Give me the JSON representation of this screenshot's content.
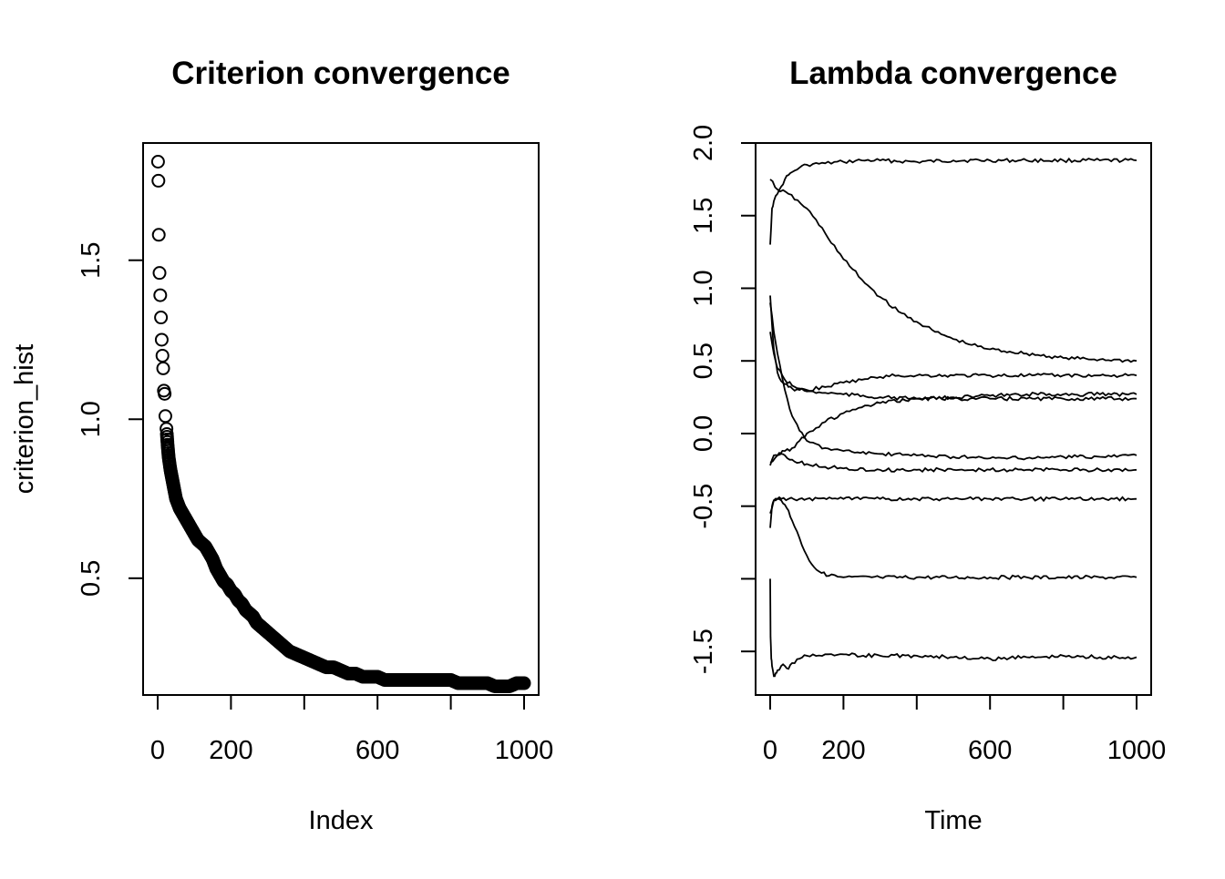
{
  "chart_data": [
    {
      "type": "scatter",
      "title": "Criterion convergence",
      "xlabel": "Index",
      "ylabel": "criterion_hist",
      "xlim": [
        0,
        1000
      ],
      "ylim": [
        0.15,
        1.82
      ],
      "x_ticks": [
        0,
        200,
        400,
        600,
        800,
        1000
      ],
      "x_tick_labels": [
        "0",
        "200",
        "",
        "600",
        "",
        "1000"
      ],
      "y_ticks": [
        0.5,
        1.0,
        1.5
      ],
      "y_tick_labels": [
        "0.5",
        "1.0",
        "1.5"
      ],
      "marker": "open-circle",
      "grid": false,
      "legend": "none",
      "series": [
        {
          "x": [
            1,
            2,
            3,
            5,
            7,
            9,
            11,
            13,
            15,
            17,
            19,
            21,
            24,
            27,
            30,
            35,
            40,
            45,
            50,
            60,
            70,
            80,
            90,
            100,
            110,
            120,
            130,
            140,
            150,
            160,
            170,
            180,
            190,
            200,
            210,
            220,
            230,
            240,
            250,
            260,
            270,
            280,
            290,
            300,
            320,
            340,
            360,
            380,
            400,
            420,
            440,
            460,
            480,
            500,
            520,
            540,
            560,
            580,
            600,
            620,
            640,
            660,
            680,
            700,
            720,
            740,
            760,
            780,
            800,
            820,
            840,
            860,
            880,
            900,
            920,
            940,
            960,
            980,
            1000
          ],
          "y": [
            1.81,
            1.75,
            1.58,
            1.46,
            1.39,
            1.32,
            1.25,
            1.2,
            1.16,
            1.09,
            1.08,
            1.01,
            0.97,
            0.92,
            0.88,
            0.84,
            0.81,
            0.78,
            0.75,
            0.72,
            0.7,
            0.68,
            0.66,
            0.64,
            0.62,
            0.61,
            0.6,
            0.58,
            0.56,
            0.53,
            0.51,
            0.49,
            0.48,
            0.46,
            0.45,
            0.43,
            0.42,
            0.4,
            0.39,
            0.38,
            0.36,
            0.35,
            0.34,
            0.33,
            0.31,
            0.29,
            0.27,
            0.26,
            0.25,
            0.24,
            0.23,
            0.22,
            0.22,
            0.21,
            0.2,
            0.2,
            0.19,
            0.19,
            0.19,
            0.18,
            0.18,
            0.18,
            0.18,
            0.18,
            0.18,
            0.18,
            0.18,
            0.18,
            0.18,
            0.17,
            0.17,
            0.17,
            0.17,
            0.17,
            0.16,
            0.16,
            0.16,
            0.17,
            0.17
          ]
        }
      ]
    },
    {
      "type": "line",
      "title": "Lambda convergence",
      "xlabel": "Time",
      "ylabel": "",
      "xlim": [
        0,
        1000
      ],
      "ylim": [
        -1.8,
        2.0
      ],
      "x_ticks": [
        0,
        200,
        400,
        600,
        800,
        1000
      ],
      "x_tick_labels": [
        "0",
        "200",
        "",
        "600",
        "",
        "1000"
      ],
      "y_ticks": [
        -1.5,
        -1.0,
        -0.5,
        0.0,
        0.5,
        1.0,
        1.5,
        2.0
      ],
      "y_tick_labels": [
        "-1.5",
        "",
        "-0.5",
        "0.0",
        "0.5",
        "1.0",
        "1.5",
        "2.0"
      ],
      "grid": false,
      "legend": "none",
      "series": [
        {
          "x": [
            0,
            5,
            10,
            20,
            30,
            40,
            50,
            60,
            80,
            100,
            150,
            200,
            250,
            300,
            400,
            500,
            600,
            700,
            800,
            900,
            1000
          ],
          "y": [
            1.3,
            1.55,
            1.6,
            1.65,
            1.7,
            1.75,
            1.78,
            1.8,
            1.83,
            1.85,
            1.86,
            1.87,
            1.88,
            1.88,
            1.87,
            1.88,
            1.88,
            1.88,
            1.88,
            1.88,
            1.88
          ]
        },
        {
          "x": [
            0,
            20,
            50,
            100,
            150,
            200,
            250,
            300,
            350,
            400,
            450,
            500,
            550,
            600,
            700,
            800,
            900,
            1000
          ],
          "y": [
            1.75,
            1.68,
            1.65,
            1.55,
            1.38,
            1.2,
            1.06,
            0.94,
            0.84,
            0.77,
            0.7,
            0.65,
            0.61,
            0.58,
            0.55,
            0.52,
            0.51,
            0.5
          ]
        },
        {
          "x": [
            0,
            5,
            10,
            20,
            30,
            40,
            50,
            60,
            80,
            100,
            150,
            200,
            250,
            300,
            350,
            400,
            500,
            600,
            700,
            800,
            900,
            1000
          ],
          "y": [
            0.95,
            0.75,
            0.58,
            0.42,
            0.36,
            0.34,
            0.32,
            0.31,
            0.3,
            0.3,
            0.32,
            0.35,
            0.37,
            0.39,
            0.4,
            0.4,
            0.4,
            0.4,
            0.4,
            0.4,
            0.4,
            0.4
          ]
        },
        {
          "x": [
            0,
            10,
            20,
            40,
            60,
            80,
            100,
            150,
            200,
            300,
            400,
            500,
            600,
            700,
            800,
            900,
            1000
          ],
          "y": [
            0.7,
            0.55,
            0.45,
            0.37,
            0.33,
            0.31,
            0.29,
            0.28,
            0.27,
            0.25,
            0.24,
            0.24,
            0.24,
            0.24,
            0.24,
            0.24,
            0.24
          ]
        },
        {
          "x": [
            0,
            20,
            40,
            60,
            80,
            100,
            150,
            200,
            250,
            300,
            400,
            500,
            600,
            700,
            800,
            900,
            1000
          ],
          "y": [
            -0.2,
            -0.15,
            -0.12,
            -0.1,
            -0.05,
            0.0,
            0.08,
            0.14,
            0.18,
            0.21,
            0.24,
            0.25,
            0.26,
            0.27,
            0.27,
            0.27,
            0.27
          ]
        },
        {
          "x": [
            0,
            10,
            20,
            40,
            60,
            80,
            100,
            150,
            200,
            300,
            400,
            500,
            600,
            700,
            800,
            900,
            1000
          ],
          "y": [
            0.9,
            0.7,
            0.55,
            0.3,
            0.12,
            0.02,
            -0.05,
            -0.1,
            -0.12,
            -0.14,
            -0.15,
            -0.16,
            -0.17,
            -0.17,
            -0.16,
            -0.16,
            -0.15
          ]
        },
        {
          "x": [
            0,
            10,
            20,
            30,
            40,
            60,
            80,
            100,
            150,
            200,
            300,
            400,
            500,
            600,
            700,
            800,
            900,
            1000
          ],
          "y": [
            -0.22,
            -0.15,
            -0.15,
            -0.14,
            -0.15,
            -0.18,
            -0.2,
            -0.21,
            -0.23,
            -0.24,
            -0.25,
            -0.25,
            -0.25,
            -0.25,
            -0.25,
            -0.25,
            -0.25,
            -0.25
          ]
        },
        {
          "x": [
            0,
            5,
            10,
            20,
            30,
            50,
            80,
            100,
            200,
            300,
            400,
            500,
            600,
            700,
            800,
            900,
            1000
          ],
          "y": [
            -0.65,
            -0.5,
            -0.46,
            -0.45,
            -0.45,
            -0.45,
            -0.45,
            -0.45,
            -0.45,
            -0.45,
            -0.45,
            -0.45,
            -0.45,
            -0.45,
            -0.45,
            -0.45,
            -0.45
          ]
        },
        {
          "x": [
            0,
            10,
            20,
            30,
            40,
            50,
            60,
            80,
            100,
            120,
            140,
            160,
            200,
            300,
            400,
            500,
            600,
            700,
            800,
            900,
            1000
          ],
          "y": [
            -0.55,
            -0.46,
            -0.45,
            -0.46,
            -0.49,
            -0.53,
            -0.6,
            -0.72,
            -0.84,
            -0.92,
            -0.96,
            -0.98,
            -0.99,
            -0.99,
            -0.99,
            -0.99,
            -0.99,
            -0.99,
            -0.99,
            -0.99,
            -0.99
          ]
        },
        {
          "x": [
            0,
            1,
            3,
            5,
            10,
            15,
            20,
            30,
            40,
            50,
            60,
            80,
            100,
            150,
            200,
            300,
            400,
            500,
            600,
            700,
            800,
            900,
            1000
          ],
          "y": [
            -1.0,
            -1.4,
            -1.55,
            -1.6,
            -1.67,
            -1.65,
            -1.63,
            -1.6,
            -1.6,
            -1.62,
            -1.58,
            -1.55,
            -1.53,
            -1.52,
            -1.52,
            -1.53,
            -1.53,
            -1.54,
            -1.55,
            -1.54,
            -1.53,
            -1.54,
            -1.54
          ]
        }
      ]
    }
  ]
}
